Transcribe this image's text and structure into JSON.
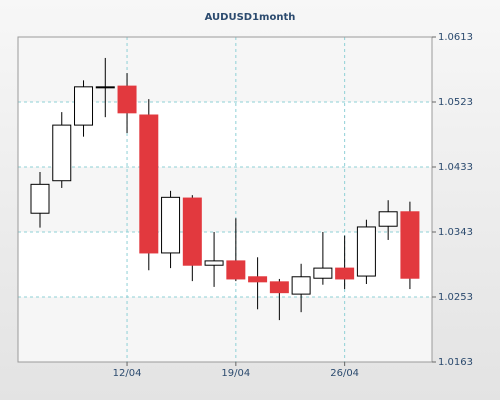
{
  "chart_data": {
    "type": "candlestick",
    "title": "AUDUSD1month",
    "categories": [
      null,
      null,
      null,
      null,
      "12/04",
      null,
      null,
      null,
      null,
      "19/04",
      null,
      null,
      null,
      null,
      "26/04",
      null,
      null,
      null
    ],
    "open": [
      1.0369,
      1.0414,
      1.0491,
      1.0543,
      1.0545,
      1.0505,
      1.0314,
      1.039,
      1.0297,
      1.0303,
      1.0281,
      1.0274,
      1.0257,
      1.0279,
      1.0293,
      1.0282,
      1.0351,
      1.0371
    ],
    "high": [
      1.0426,
      1.0509,
      1.0553,
      1.0584,
      1.0563,
      1.0527,
      1.04,
      1.0394,
      1.0343,
      1.0362,
      1.0308,
      1.0278,
      1.0299,
      1.0343,
      1.0338,
      1.036,
      1.0387,
      1.0385
    ],
    "low": [
      1.0349,
      1.0404,
      1.0475,
      1.0502,
      1.048,
      1.029,
      1.0293,
      1.0275,
      1.0267,
      1.0275,
      1.0236,
      1.0221,
      1.0232,
      1.027,
      1.0264,
      1.0271,
      1.0332,
      1.0264
    ],
    "close": [
      1.0409,
      1.0491,
      1.0544,
      1.0544,
      1.0508,
      1.0314,
      1.0391,
      1.0297,
      1.0303,
      1.0278,
      1.0274,
      1.0259,
      1.0281,
      1.0293,
      1.0278,
      1.035,
      1.0371,
      1.0279
    ],
    "up_color": "#ffffff",
    "down_color": "#e2393e",
    "ylim": [
      1.0163,
      1.0613
    ],
    "yticks": [
      1.0163,
      1.0253,
      1.0343,
      1.0433,
      1.0523,
      1.0613
    ],
    "grid": true
  }
}
